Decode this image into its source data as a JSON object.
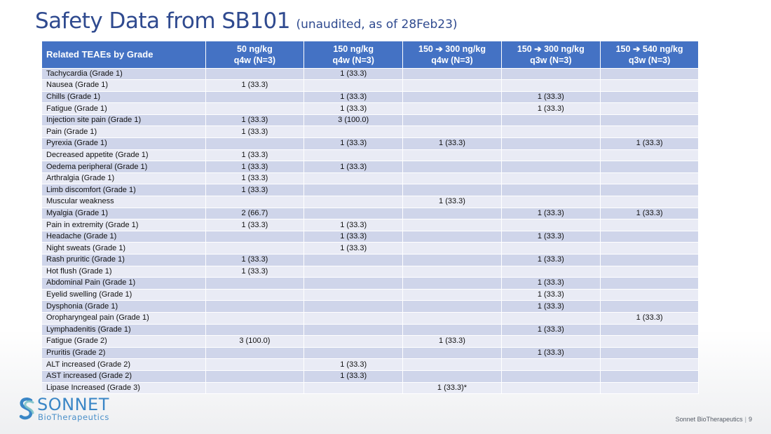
{
  "title": {
    "main": "Safety Data from SB101",
    "sub": "(unaudited, as of 28Feb23)"
  },
  "table": {
    "headers": [
      [
        "Related TEAEs by Grade"
      ],
      [
        "50 ng/kg",
        "q4w (N=3)"
      ],
      [
        "150 ng/kg",
        "q4w (N=3)"
      ],
      [
        "150 ➔ 300 ng/kg",
        "q4w (N=3)"
      ],
      [
        "150 ➔ 300 ng/kg",
        "q3w (N=3)"
      ],
      [
        "150 ➔ 540 ng/kg",
        "q3w (N=3)"
      ]
    ],
    "rows": [
      [
        "Tachycardia (Grade 1)",
        "",
        "1 (33.3)",
        "",
        "",
        ""
      ],
      [
        "Nausea (Grade 1)",
        "1 (33.3)",
        "",
        "",
        "",
        ""
      ],
      [
        "Chills (Grade 1)",
        "",
        "1 (33.3)",
        "",
        "1 (33.3)",
        ""
      ],
      [
        "Fatigue (Grade 1)",
        "",
        "1 (33.3)",
        "",
        "1 (33.3)",
        ""
      ],
      [
        "Injection site pain (Grade 1)",
        "1 (33.3)",
        "3 (100.0)",
        "",
        "",
        ""
      ],
      [
        "Pain (Grade 1)",
        "1 (33.3)",
        "",
        "",
        "",
        ""
      ],
      [
        "Pyrexia (Grade 1)",
        "",
        "1 (33.3)",
        "1 (33.3)",
        "",
        "1 (33.3)"
      ],
      [
        "Decreased appetite (Grade 1)",
        "1 (33.3)",
        "",
        "",
        "",
        ""
      ],
      [
        "Oedema peripheral (Grade 1)",
        "1 (33.3)",
        "1 (33.3)",
        "",
        "",
        ""
      ],
      [
        "Arthralgia (Grade 1)",
        "1 (33.3)",
        "",
        "",
        "",
        ""
      ],
      [
        "Limb discomfort (Grade 1)",
        "1 (33.3)",
        "",
        "",
        "",
        ""
      ],
      [
        "Muscular weakness",
        "",
        "",
        "1 (33.3)",
        "",
        ""
      ],
      [
        "Myalgia (Grade 1)",
        "2 (66.7)",
        "",
        "",
        "1 (33.3)",
        "1 (33.3)"
      ],
      [
        "Pain in extremity (Grade 1)",
        "1 (33.3)",
        "1 (33.3)",
        "",
        "",
        ""
      ],
      [
        "Headache (Grade 1)",
        "",
        "1 (33.3)",
        "",
        "1 (33.3)",
        ""
      ],
      [
        "Night sweats (Grade 1)",
        "",
        "1 (33.3)",
        "",
        "",
        ""
      ],
      [
        "Rash pruritic (Grade 1)",
        "1 (33.3)",
        "",
        "",
        "1 (33.3)",
        ""
      ],
      [
        "Hot flush (Grade 1)",
        "1 (33.3)",
        "",
        "",
        "",
        ""
      ],
      [
        "Abdominal Pain (Grade 1)",
        "",
        "",
        "",
        "1 (33.3)",
        ""
      ],
      [
        "Eyelid swelling (Grade 1)",
        "",
        "",
        "",
        "1 (33.3)",
        ""
      ],
      [
        "Dysphonia (Grade 1)",
        "",
        "",
        "",
        "1 (33.3)",
        ""
      ],
      [
        "Oropharyngeal pain (Grade 1)",
        "",
        "",
        "",
        "",
        "1 (33.3)"
      ],
      [
        "Lymphadenitis (Grade 1)",
        "",
        "",
        "",
        "1 (33.3)",
        ""
      ],
      [
        "Fatigue (Grade 2)",
        "3 (100.0)",
        "",
        "1 (33.3)",
        "",
        ""
      ],
      [
        "Pruritis (Grade 2)",
        "",
        "",
        "",
        "1 (33.3)",
        ""
      ],
      [
        "ALT increased (Grade 2)",
        "",
        "1 (33.3)",
        "",
        "",
        ""
      ],
      [
        "AST increased (Grade 2)",
        "",
        "1 (33.3)",
        "",
        "",
        ""
      ],
      [
        "Lipase Increased (Grade 3)",
        "",
        "",
        "1 (33.3)*",
        "",
        ""
      ]
    ],
    "group_breaks_before_rows": [
      23,
      27
    ]
  },
  "logo": {
    "word": "SONNET",
    "sub": "BioTherapeutics",
    "icon": "sonnet-s-logo-icon"
  },
  "footer": {
    "company": "Sonnet BioTherapeutics",
    "page": "9"
  },
  "colors": {
    "title": "#2f4a8f",
    "header_bg": "#4472c4",
    "row_odd": "#cfd5ea",
    "row_even": "#e9ebf5",
    "logo_blue": "#3a86c6",
    "logo_teal": "#7fc4c9"
  }
}
